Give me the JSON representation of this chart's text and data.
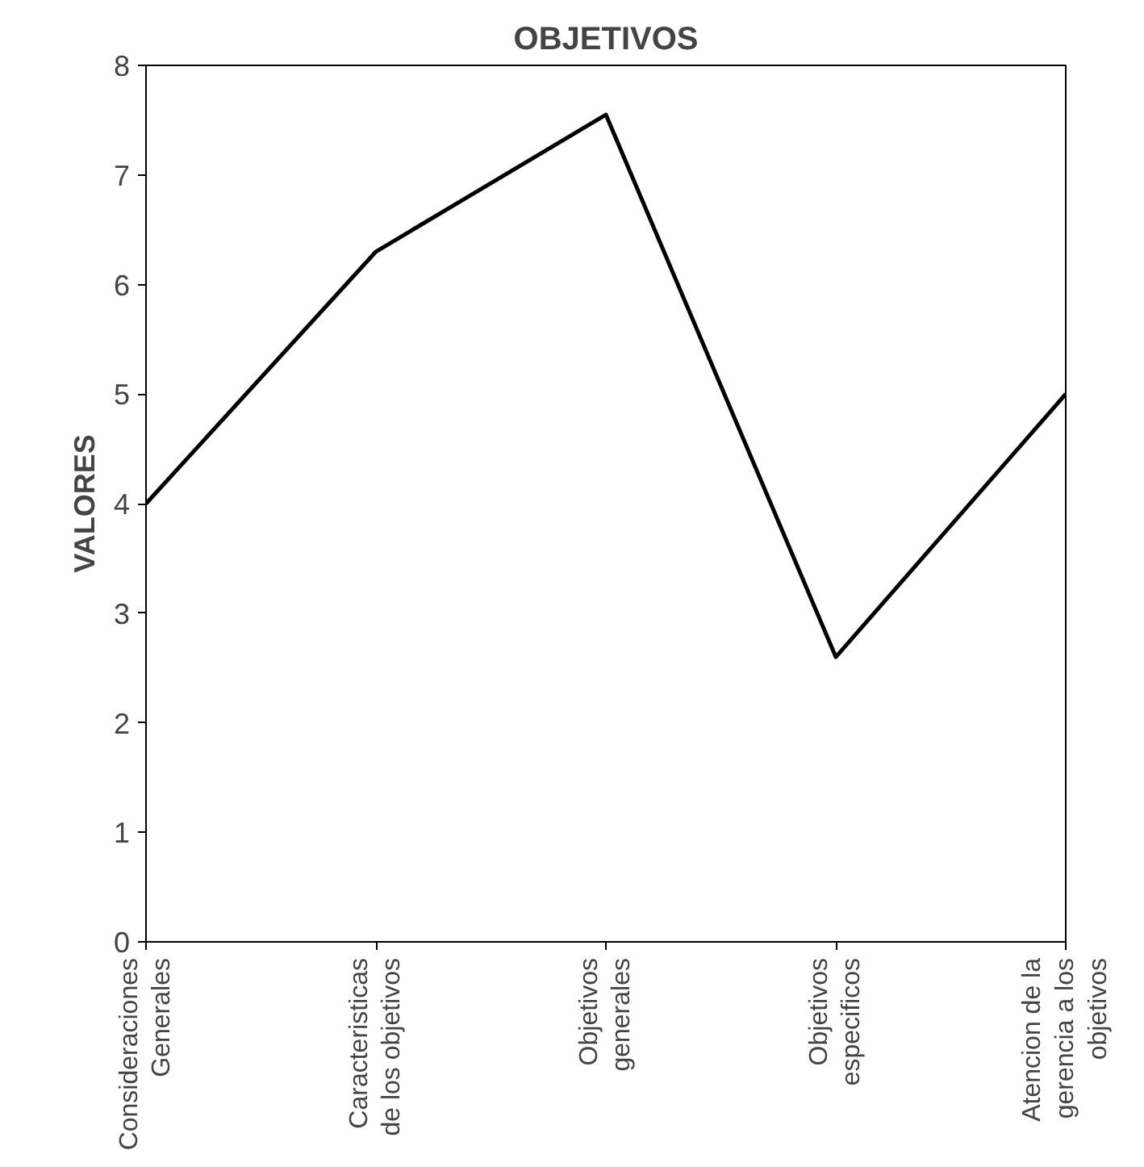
{
  "chart_data": {
    "type": "line",
    "title": "OBJETIVOS",
    "ylabel": "VALORES",
    "categories": [
      "Consideraciones Generales",
      "Caracteristicas de los objetivos",
      "Objetivos generales",
      "Objetivos especificos",
      "Atencion de la gerencia a los objetivos"
    ],
    "series": [
      {
        "color": "#000000",
        "values": [
          4,
          6.3,
          7.55,
          2.6,
          5
        ]
      }
    ],
    "ylim": [
      0,
      8
    ],
    "yticks": [
      0,
      1,
      2,
      3,
      4,
      5,
      6,
      7,
      8
    ],
    "grid": false,
    "marker": "none",
    "line_style": "solid"
  }
}
